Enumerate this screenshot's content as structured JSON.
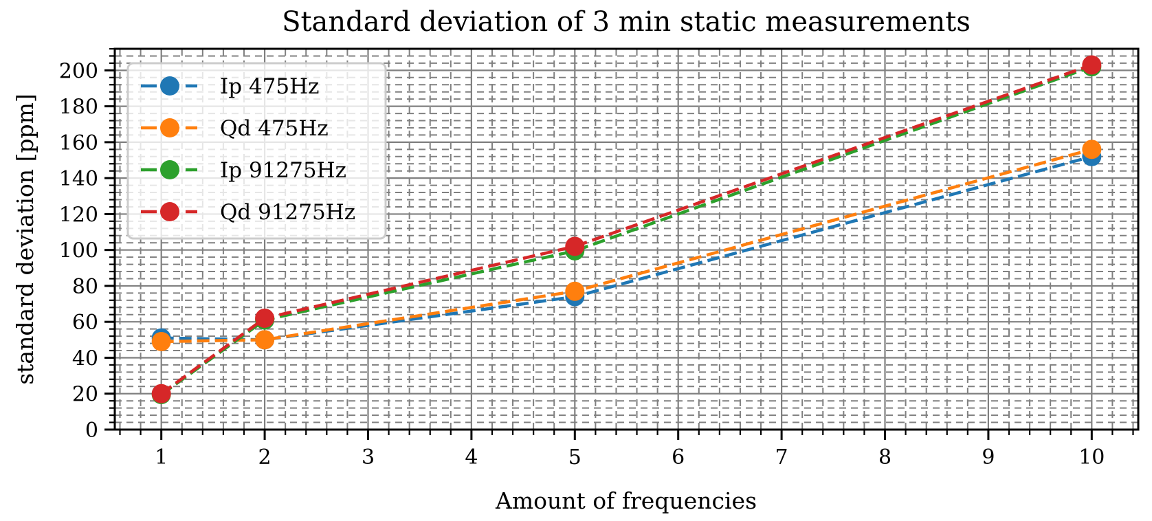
{
  "chart_data": {
    "type": "line",
    "title": "Standard deviation of 3 min static measurements",
    "xlabel": "Amount of frequencies",
    "ylabel": "standard deviation [ppm]",
    "xlim": [
      0.55,
      10.45
    ],
    "ylim": [
      0,
      212
    ],
    "xticks": [
      1,
      2,
      3,
      4,
      5,
      6,
      7,
      8,
      9,
      10
    ],
    "xtick_labels": [
      "1",
      "2",
      "3",
      "4",
      "5",
      "6",
      "7",
      "8",
      "9",
      "10"
    ],
    "x_minor_step": 0.2,
    "yticks": [
      0,
      20,
      40,
      60,
      80,
      100,
      120,
      140,
      160,
      180,
      200
    ],
    "ytick_labels": [
      "0",
      "20",
      "40",
      "60",
      "80",
      "100",
      "120",
      "140",
      "160",
      "180",
      "200"
    ],
    "y_minor_step": 4,
    "grid": {
      "major": "solid",
      "minor": "dashed",
      "color": "#808080"
    },
    "legend": {
      "placement": "top-left"
    },
    "x": [
      1,
      2,
      5,
      10
    ],
    "series": [
      {
        "name": "Ip 475Hz",
        "color": "#1f77b4",
        "values": [
          51,
          50,
          74,
          152
        ]
      },
      {
        "name": "Qd 475Hz",
        "color": "#ff7f0e",
        "values": [
          49,
          50,
          77,
          156
        ]
      },
      {
        "name": "Ip 91275Hz",
        "color": "#2ca02c",
        "values": [
          19.5,
          61,
          99.5,
          202
        ]
      },
      {
        "name": "Qd 91275Hz",
        "color": "#d62728",
        "values": [
          20,
          62,
          102,
          203
        ]
      }
    ]
  }
}
